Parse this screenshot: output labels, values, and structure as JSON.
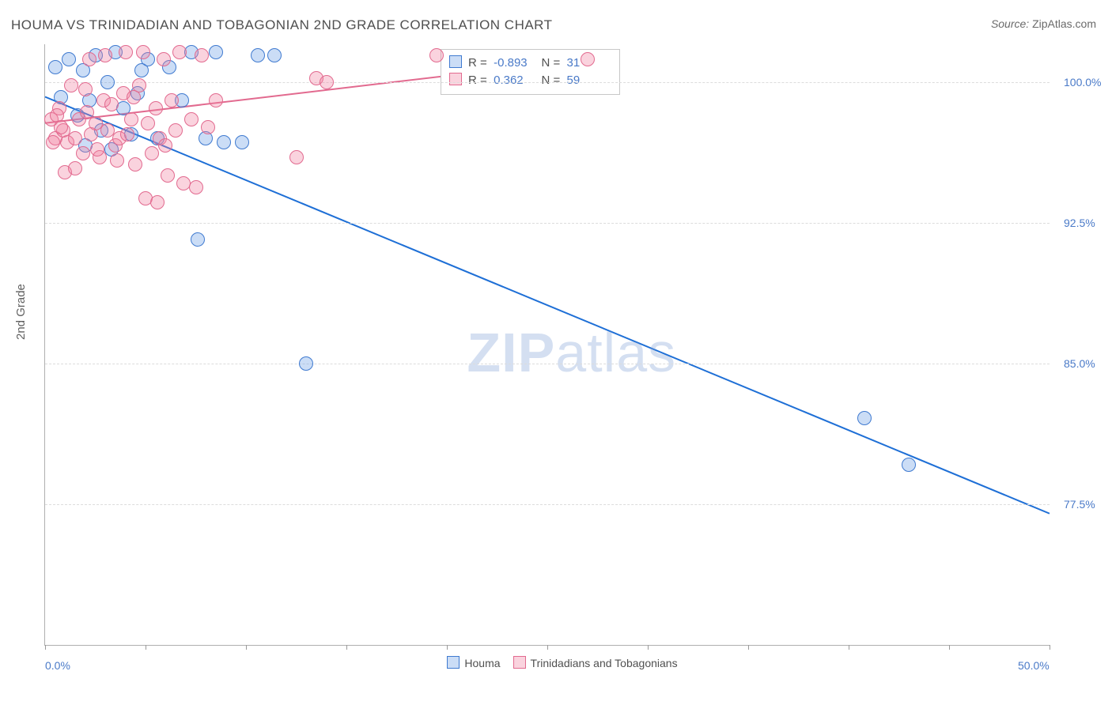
{
  "title": "HOUMA VS TRINIDADIAN AND TOBAGONIAN 2ND GRADE CORRELATION CHART",
  "source_label": "Source:",
  "source_value": "ZipAtlas.com",
  "y_axis_title": "2nd Grade",
  "watermark_text": "ZIPatlas",
  "chart": {
    "type": "scatter",
    "x_min": 0,
    "x_max": 50,
    "y_min": 70,
    "y_max": 102,
    "x_format": "percent",
    "y_format": "percent",
    "background_color": "#ffffff",
    "grid_color": "#dcdcdc",
    "axis_color": "#b0b0b0",
    "tick_color": "#9a9a9a",
    "label_color": "#4a7ac8",
    "title_color": "#505050",
    "title_fontsize": 17,
    "label_fontsize": 14,
    "marker_radius": 9,
    "marker_border_width": 1.2,
    "line_width": 2,
    "x_ticks": [
      0,
      5,
      10,
      15,
      20,
      25,
      30,
      35,
      40,
      45,
      50
    ],
    "x_tick_labels": {
      "0": "0.0%",
      "50": "50.0%"
    },
    "y_ticks": [
      77.5,
      85.0,
      92.5,
      100.0
    ],
    "y_tick_labels": [
      "77.5%",
      "85.0%",
      "92.5%",
      "100.0%"
    ]
  },
  "series": [
    {
      "key": "houma",
      "label": "Houma",
      "fill": "rgba(106,158,228,0.35)",
      "stroke": "#3f7ad0",
      "line_color": "#1e6fd6",
      "R": "-0.893",
      "N": "31",
      "regression": {
        "x1": 0,
        "y1": 99.2,
        "x2": 50,
        "y2": 77.0
      },
      "points": [
        [
          0.5,
          100.8
        ],
        [
          0.8,
          99.2
        ],
        [
          1.2,
          101.2
        ],
        [
          1.6,
          98.2
        ],
        [
          1.9,
          100.6
        ],
        [
          2.2,
          99.0
        ],
        [
          2.5,
          101.4
        ],
        [
          2.8,
          97.4
        ],
        [
          3.1,
          100.0
        ],
        [
          3.5,
          101.6
        ],
        [
          3.9,
          98.6
        ],
        [
          4.3,
          97.2
        ],
        [
          4.6,
          99.4
        ],
        [
          5.1,
          101.2
        ],
        [
          5.6,
          97.0
        ],
        [
          6.2,
          100.8
        ],
        [
          6.8,
          99.0
        ],
        [
          7.3,
          101.6
        ],
        [
          8.0,
          97.0
        ],
        [
          8.5,
          101.6
        ],
        [
          8.9,
          96.8
        ],
        [
          9.8,
          96.8
        ],
        [
          10.6,
          101.4
        ],
        [
          11.4,
          101.4
        ],
        [
          7.6,
          91.6
        ],
        [
          13.0,
          85.0
        ],
        [
          40.8,
          82.1
        ],
        [
          43.0,
          79.6
        ],
        [
          2.0,
          96.6
        ],
        [
          3.3,
          96.4
        ],
        [
          4.8,
          100.6
        ]
      ]
    },
    {
      "key": "tt",
      "label": "Trinidadians and Tobagonians",
      "fill": "rgba(242,128,160,0.35)",
      "stroke": "#e26a8f",
      "line_color": "#e26a8f",
      "R": "0.362",
      "N": "59",
      "regression": {
        "x1": 0,
        "y1": 97.8,
        "x2": 27,
        "y2": 101.2
      },
      "points": [
        [
          0.3,
          98.0
        ],
        [
          0.5,
          97.0
        ],
        [
          0.7,
          98.6
        ],
        [
          0.9,
          97.4
        ],
        [
          1.1,
          96.8
        ],
        [
          1.3,
          99.8
        ],
        [
          1.5,
          97.0
        ],
        [
          1.7,
          98.0
        ],
        [
          1.9,
          96.2
        ],
        [
          2.1,
          98.4
        ],
        [
          2.3,
          97.2
        ],
        [
          2.5,
          97.8
        ],
        [
          2.7,
          96.0
        ],
        [
          2.9,
          99.0
        ],
        [
          3.1,
          97.4
        ],
        [
          3.3,
          98.8
        ],
        [
          3.5,
          96.6
        ],
        [
          3.7,
          97.0
        ],
        [
          3.9,
          99.4
        ],
        [
          4.1,
          97.2
        ],
        [
          4.3,
          98.0
        ],
        [
          4.5,
          95.6
        ],
        [
          4.7,
          99.8
        ],
        [
          4.9,
          101.6
        ],
        [
          5.1,
          97.8
        ],
        [
          5.3,
          96.2
        ],
        [
          5.5,
          98.6
        ],
        [
          5.7,
          97.0
        ],
        [
          5.9,
          101.2
        ],
        [
          6.1,
          95.0
        ],
        [
          6.3,
          99.0
        ],
        [
          6.5,
          97.4
        ],
        [
          6.9,
          94.6
        ],
        [
          7.3,
          98.0
        ],
        [
          7.5,
          94.4
        ],
        [
          7.8,
          101.4
        ],
        [
          8.1,
          97.6
        ],
        [
          8.5,
          99.0
        ],
        [
          4.0,
          101.6
        ],
        [
          3.0,
          101.4
        ],
        [
          2.2,
          101.2
        ],
        [
          6.7,
          101.6
        ],
        [
          5.0,
          93.8
        ],
        [
          5.6,
          93.6
        ],
        [
          12.5,
          96.0
        ],
        [
          13.5,
          100.2
        ],
        [
          14.0,
          100.0
        ],
        [
          19.5,
          101.4
        ],
        [
          27.0,
          101.2
        ],
        [
          1.0,
          95.2
        ],
        [
          1.5,
          95.4
        ],
        [
          0.4,
          96.8
        ],
        [
          0.6,
          98.2
        ],
        [
          0.8,
          97.6
        ],
        [
          2.0,
          99.6
        ],
        [
          2.6,
          96.4
        ],
        [
          3.6,
          95.8
        ],
        [
          4.4,
          99.2
        ],
        [
          6.0,
          96.6
        ]
      ]
    }
  ],
  "legend_bottom": {
    "items": [
      "houma",
      "tt"
    ]
  },
  "stats_box": {
    "R_label": "R =",
    "N_label": "N ="
  }
}
